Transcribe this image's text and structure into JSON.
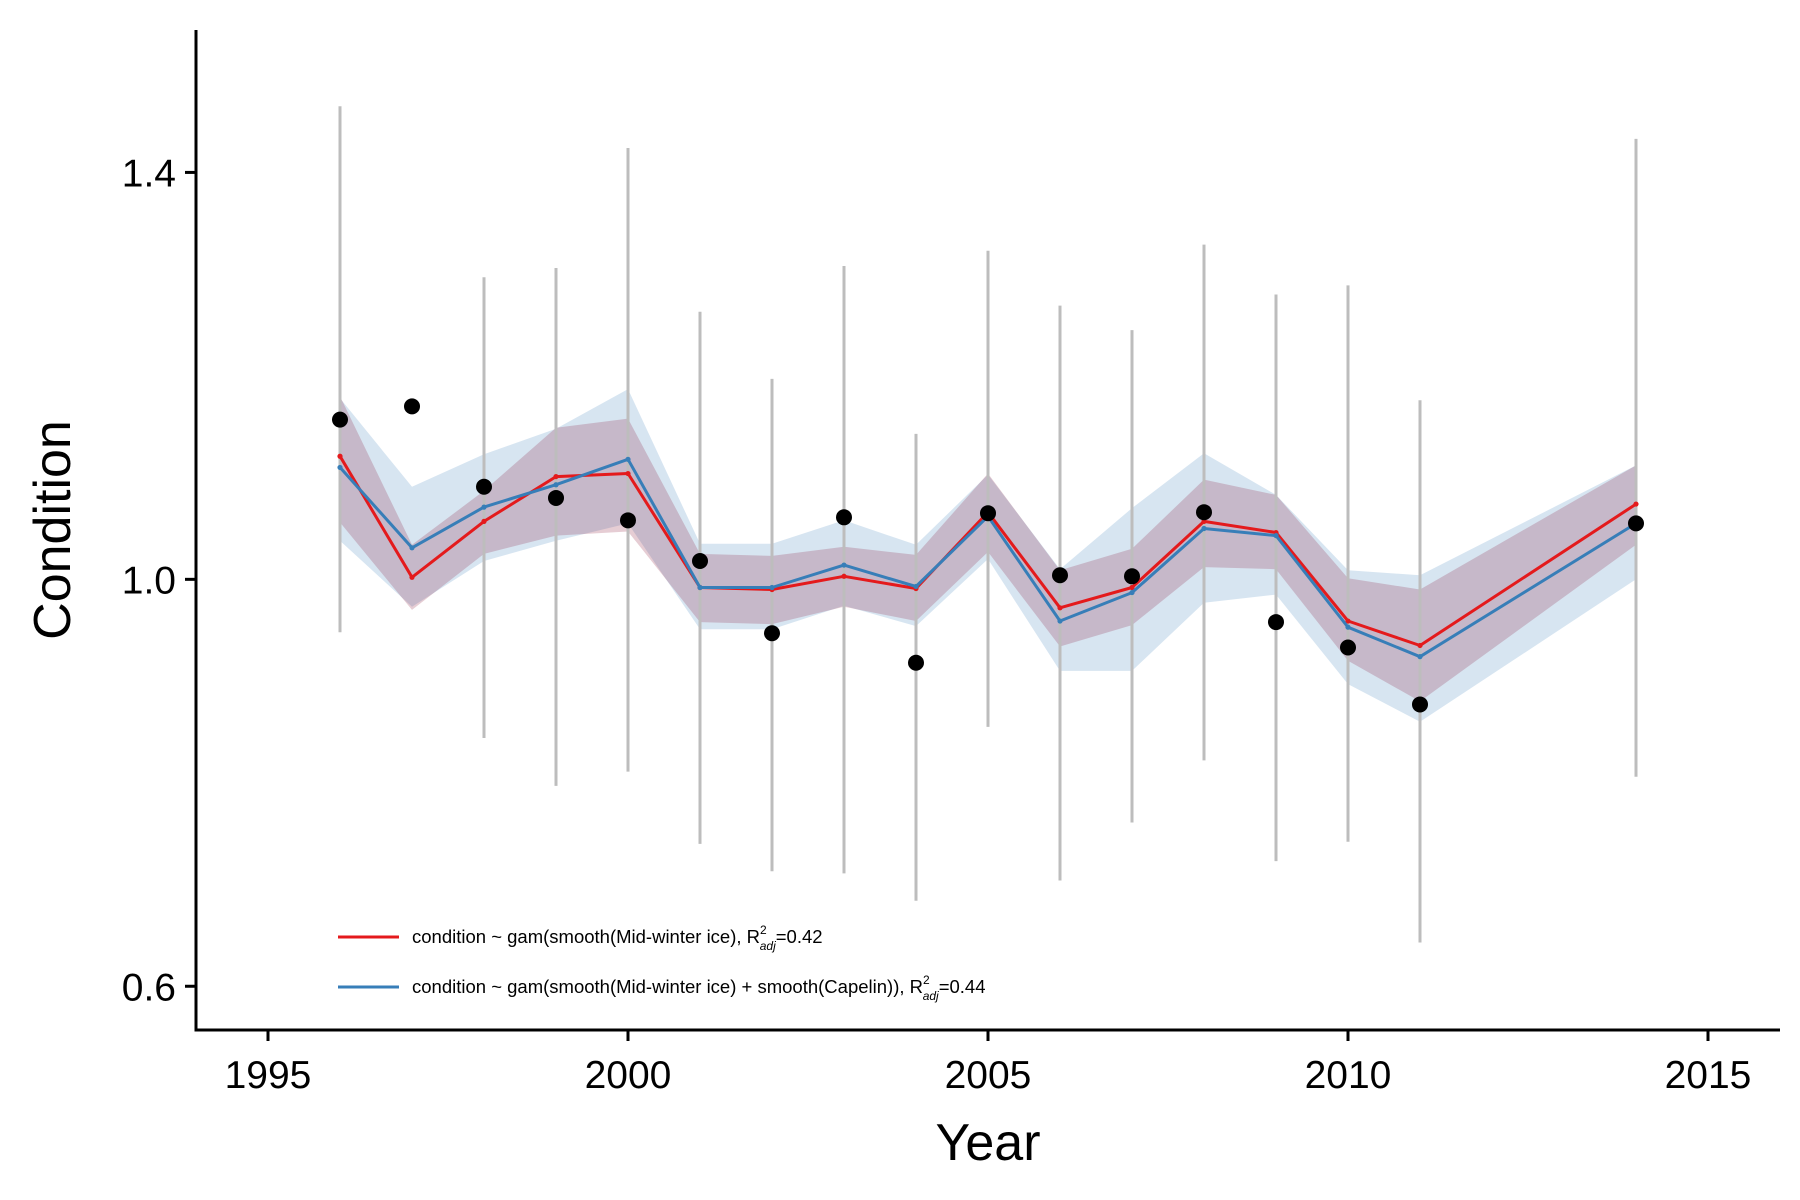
{
  "chart_data": {
    "type": "line",
    "xlabel": "Year",
    "ylabel": "Condition",
    "xlim": [
      1994,
      2016
    ],
    "ylim": [
      0.557,
      1.54
    ],
    "x_ticks": [
      1995,
      2000,
      2005,
      2010,
      2015
    ],
    "x_tick_labels": [
      "1995",
      "2000",
      "2005",
      "2010",
      "2015"
    ],
    "y_ticks": [
      0.6,
      1.0,
      1.4
    ],
    "y_tick_labels": [
      "0.6",
      "1.0",
      "1.4"
    ],
    "grid": false,
    "legend": {
      "position": "bottom-left",
      "entries": [
        {
          "series": "red",
          "prefix": "condition ~ gam(smooth(Mid-winter ice), R",
          "sup": "2",
          "sub": "adj",
          "suffix": "=0.42"
        },
        {
          "series": "blue",
          "prefix": "condition ~ gam(smooth(Mid-winter ice) + smooth(Capelin)), R",
          "sup": "2",
          "sub": "adj",
          "suffix": "=0.44"
        }
      ]
    },
    "observations": {
      "color": "#000000",
      "error_bar_color": "#bdbdbd",
      "points": [
        {
          "x": 1996,
          "y": 1.157,
          "low": 0.948,
          "high": 1.465
        },
        {
          "x": 1997,
          "y": 1.17,
          "low": null,
          "high": null
        },
        {
          "x": 1998,
          "y": 1.091,
          "low": 0.844,
          "high": 1.297
        },
        {
          "x": 1999,
          "y": 1.08,
          "low": 0.797,
          "high": 1.306
        },
        {
          "x": 2000,
          "y": 1.058,
          "low": 0.811,
          "high": 1.424
        },
        {
          "x": 2001,
          "y": 1.018,
          "low": 0.74,
          "high": 1.263
        },
        {
          "x": 2002,
          "y": 0.947,
          "low": 0.713,
          "high": 1.197
        },
        {
          "x": 2003,
          "y": 1.061,
          "low": 0.711,
          "high": 1.308
        },
        {
          "x": 2004,
          "y": 0.918,
          "low": 0.684,
          "high": 1.143
        },
        {
          "x": 2005,
          "y": 1.065,
          "low": 0.855,
          "high": 1.323
        },
        {
          "x": 2006,
          "y": 1.004,
          "low": 0.704,
          "high": 1.269
        },
        {
          "x": 2007,
          "y": 1.003,
          "low": 0.761,
          "high": 1.245
        },
        {
          "x": 2008,
          "y": 1.066,
          "low": 0.822,
          "high": 1.329
        },
        {
          "x": 2009,
          "y": 0.958,
          "low": 0.723,
          "high": 1.28
        },
        {
          "x": 2010,
          "y": 0.933,
          "low": 0.742,
          "high": 1.289
        },
        {
          "x": 2011,
          "y": 0.877,
          "low": 0.643,
          "high": 1.176
        },
        {
          "x": 2014,
          "y": 1.055,
          "low": 0.806,
          "high": 1.433
        }
      ]
    },
    "series": [
      {
        "key": "red",
        "color": "#e41a1c",
        "band_color": "#8b1a3a",
        "band_opacity": 0.22,
        "x": [
          1996,
          1997,
          1998,
          1999,
          2000,
          2001,
          2002,
          2003,
          2004,
          2005,
          2006,
          2007,
          2008,
          2009,
          2010,
          2011,
          2014
        ],
        "y": [
          1.121,
          1.002,
          1.057,
          1.101,
          1.104,
          0.992,
          0.99,
          1.003,
          0.991,
          1.066,
          0.972,
          0.992,
          1.057,
          1.046,
          0.959,
          0.935,
          1.074
        ],
        "lower": [
          1.056,
          0.97,
          1.025,
          1.043,
          1.047,
          0.958,
          0.956,
          0.973,
          0.959,
          1.027,
          0.934,
          0.955,
          1.012,
          1.01,
          0.92,
          0.88,
          1.034
        ],
        "upper": [
          1.18,
          1.034,
          1.087,
          1.149,
          1.158,
          1.025,
          1.023,
          1.032,
          1.024,
          1.104,
          1.009,
          1.03,
          1.098,
          1.083,
          1.001,
          0.99,
          1.112
        ]
      },
      {
        "key": "blue",
        "color": "#377eb8",
        "band_color": "#377eb8",
        "band_opacity": 0.2,
        "x": [
          1996,
          1997,
          1998,
          1999,
          2000,
          2001,
          2002,
          2003,
          2004,
          2005,
          2006,
          2007,
          2008,
          2009,
          2010,
          2011,
          2014
        ],
        "y": [
          1.11,
          1.031,
          1.071,
          1.093,
          1.118,
          0.992,
          0.992,
          1.014,
          0.993,
          1.062,
          0.959,
          0.987,
          1.05,
          1.043,
          0.953,
          0.924,
          1.055
        ],
        "lower": [
          1.038,
          0.973,
          1.018,
          1.038,
          1.055,
          0.951,
          0.951,
          0.974,
          0.954,
          1.02,
          0.91,
          0.91,
          0.977,
          0.985,
          0.897,
          0.86,
          1.0
        ],
        "upper": [
          1.178,
          1.091,
          1.123,
          1.148,
          1.187,
          1.035,
          1.035,
          1.058,
          1.034,
          1.103,
          1.01,
          1.07,
          1.124,
          1.083,
          1.009,
          1.004,
          1.112
        ]
      }
    ]
  }
}
